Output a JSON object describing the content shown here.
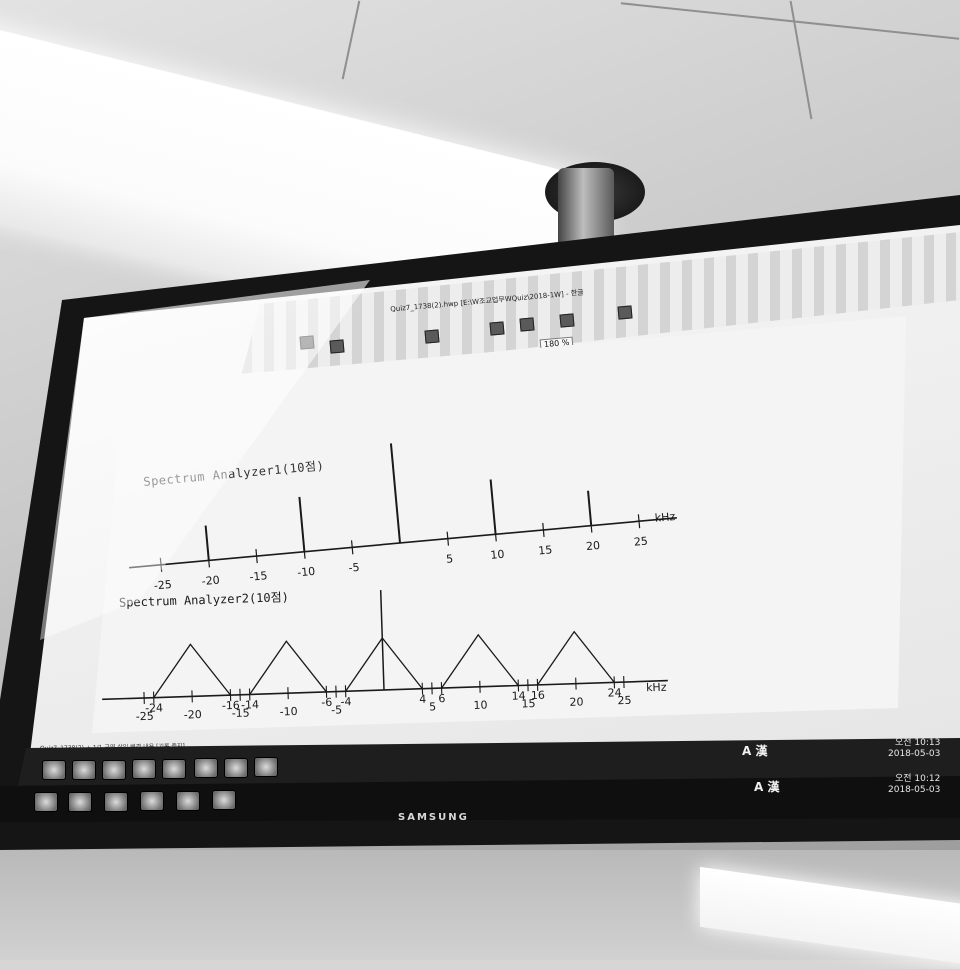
{
  "window": {
    "title": "Quiz7_1738(2).hwp [E:\\W조교업무WQuiz\\2018-1W] - 한글",
    "zoom": "180 %"
  },
  "document": {
    "chart_data": [
      {
        "type": "bar",
        "title": "Spectrum Analyzer1(10점)",
        "unit": "kHz",
        "tick_labels": [
          "-25",
          "-20",
          "-15",
          "-10",
          "-5",
          "5",
          "10",
          "15",
          "20",
          "25"
        ],
        "line_positions": [
          -20,
          -10,
          0,
          10,
          20
        ],
        "line_relative_heights": [
          0.35,
          0.55,
          1.0,
          0.55,
          0.35
        ]
      },
      {
        "type": "area",
        "title": "Spectrum Analyzer2(10점)",
        "unit": "kHz",
        "tick_labels": [
          "-25",
          "-24",
          "-20",
          "-16",
          "-15",
          "-14",
          "-10",
          "-6",
          "-5",
          "-4",
          "4",
          "5",
          "6",
          "10",
          "14",
          "15",
          "16",
          "20",
          "24",
          "25"
        ],
        "triangles": [
          {
            "from": -24,
            "peak": -20,
            "to": -16
          },
          {
            "from": -14,
            "peak": -10,
            "to": -6
          },
          {
            "from": -4,
            "peak": 0,
            "to": 4
          },
          {
            "from": 6,
            "peak": 10,
            "to": 14
          },
          {
            "from": 16,
            "peak": 20,
            "to": 24
          }
        ],
        "center_impulse": 0
      }
    ]
  },
  "statusbar": {
    "text": "Quiz7_1738(2)  +  1/1 구역  삽입  변경 내용 [기록 중지]"
  },
  "tray": {
    "top": {
      "ime": "A 漢",
      "time": "오전 10:13",
      "date": "2018-05-03"
    },
    "bottom": {
      "ime": "A 漢",
      "time": "오전 10:12",
      "date": "2018-05-03"
    }
  },
  "monitor": {
    "brand": "SAMSUNG"
  },
  "colors": {
    "ink": "#1a1a1a",
    "paper": "#f4f4f4",
    "bezel": "#151515"
  }
}
